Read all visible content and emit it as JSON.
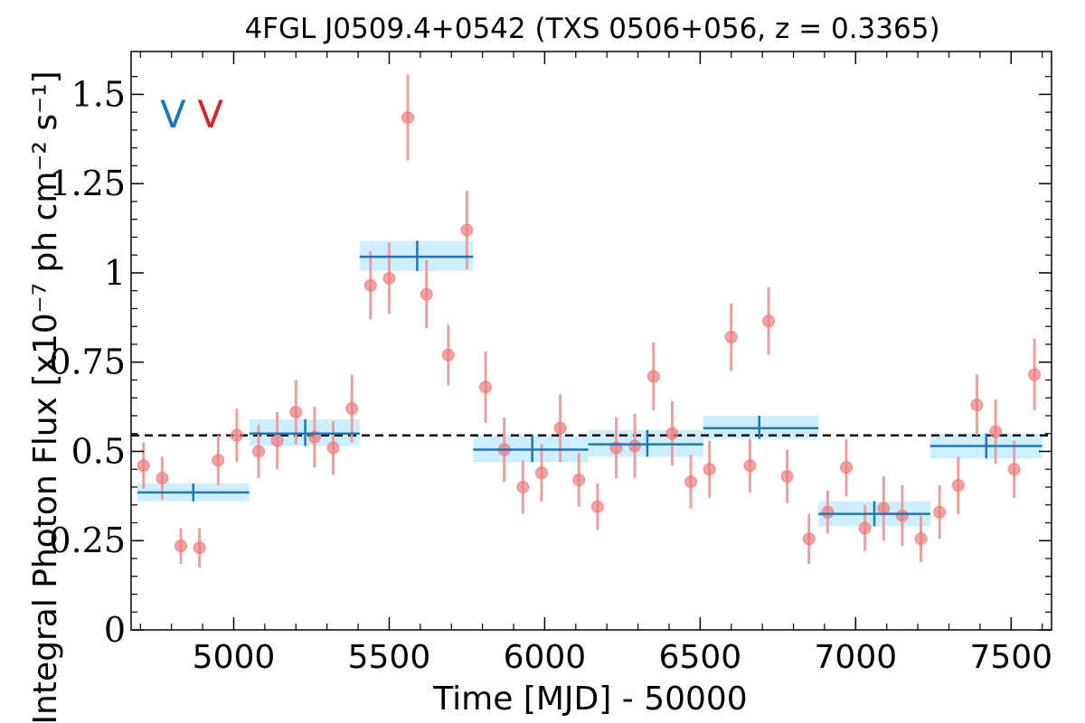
{
  "chart_data": {
    "type": "scatter",
    "title": "4FGL J0509.4+0542 (TXS 0506+056, z = 0.3365)",
    "xlabel": "Time [MJD] - 50000",
    "ylabel": "Integral Photon Flux [x10⁻⁷ ph cm⁻² s⁻¹]",
    "xlim": [
      4670,
      7630
    ],
    "ylim": [
      0,
      1.62
    ],
    "x_ticks": [
      5000,
      5500,
      6000,
      6500,
      7000,
      7500
    ],
    "x_tick_labels": [
      "5000",
      "5500",
      "6000",
      "6500",
      "7000",
      "7500"
    ],
    "y_ticks": [
      0,
      0.25,
      0.5,
      0.75,
      1,
      1.25,
      1.5
    ],
    "y_tick_labels": [
      "0",
      "0.25",
      "0.5",
      "0.75",
      "1",
      "1.25",
      "1.5"
    ],
    "mean_flux": 0.545,
    "grid": false,
    "colors": {
      "points": "#ef7b7b",
      "errorbars": "#e8a0a0",
      "bins": "#1f77b4",
      "band": "#cceeff",
      "marker_blue": "#1f77b4",
      "marker_red": "#d62728"
    },
    "markers": [
      {
        "label": "V",
        "x": 4805,
        "y": 1.445,
        "color": "#1f77b4"
      },
      {
        "label": "V",
        "x": 4925,
        "y": 1.445,
        "color": "#d62728"
      }
    ],
    "series": [
      {
        "type": "points",
        "x": [
          4710,
          4770,
          4830,
          4890,
          4950,
          5010,
          5080,
          5140,
          5200,
          5260,
          5320,
          5380,
          5440,
          5500,
          5560,
          5620,
          5690,
          5750,
          5810,
          5870,
          5930,
          5990,
          6050,
          6110,
          6170,
          6230,
          6290,
          6350,
          6410,
          6470,
          6530,
          6600,
          6660,
          6720,
          6780,
          6850,
          6910,
          6970,
          7030,
          7090,
          7150,
          7210,
          7270,
          7330,
          7390,
          7450,
          7510,
          7575
        ],
        "y": [
          0.46,
          0.425,
          0.235,
          0.23,
          0.475,
          0.545,
          0.5,
          0.53,
          0.61,
          0.54,
          0.51,
          0.62,
          0.965,
          0.985,
          1.435,
          0.94,
          0.77,
          1.12,
          0.68,
          0.505,
          0.4,
          0.44,
          0.565,
          0.42,
          0.345,
          0.51,
          0.515,
          0.71,
          0.55,
          0.415,
          0.45,
          0.82,
          0.46,
          0.865,
          0.43,
          0.255,
          0.33,
          0.455,
          0.285,
          0.34,
          0.32,
          0.255,
          0.33,
          0.405,
          0.63,
          0.555,
          0.45,
          0.715
        ],
        "err": [
          0.065,
          0.06,
          0.05,
          0.055,
          0.07,
          0.075,
          0.075,
          0.08,
          0.09,
          0.085,
          0.075,
          0.095,
          0.095,
          0.1,
          0.12,
          0.095,
          0.085,
          0.11,
          0.1,
          0.09,
          0.075,
          0.08,
          0.095,
          0.075,
          0.065,
          0.085,
          0.09,
          0.095,
          0.09,
          0.075,
          0.08,
          0.095,
          0.075,
          0.095,
          0.075,
          0.07,
          0.06,
          0.08,
          0.065,
          0.09,
          0.085,
          0.065,
          0.075,
          0.08,
          0.085,
          0.09,
          0.08,
          0.1
        ]
      },
      {
        "type": "bins",
        "x_start": [
          4690,
          5050,
          5405,
          5770,
          6140,
          6510,
          6880,
          7240
        ],
        "x_end": [
          5050,
          5405,
          5770,
          6140,
          6510,
          6880,
          7240,
          7600
        ],
        "x_center": [
          4870,
          5230,
          5590,
          5960,
          6330,
          6690,
          7060,
          7420
        ],
        "y": [
          0.385,
          0.55,
          1.045,
          0.505,
          0.52,
          0.565,
          0.325,
          0.515
        ],
        "y_lo": [
          0.36,
          0.515,
          1.005,
          0.47,
          0.485,
          0.535,
          0.29,
          0.48
        ],
        "y_hi": [
          0.41,
          0.59,
          1.09,
          0.545,
          0.56,
          0.6,
          0.36,
          0.55
        ]
      }
    ]
  }
}
